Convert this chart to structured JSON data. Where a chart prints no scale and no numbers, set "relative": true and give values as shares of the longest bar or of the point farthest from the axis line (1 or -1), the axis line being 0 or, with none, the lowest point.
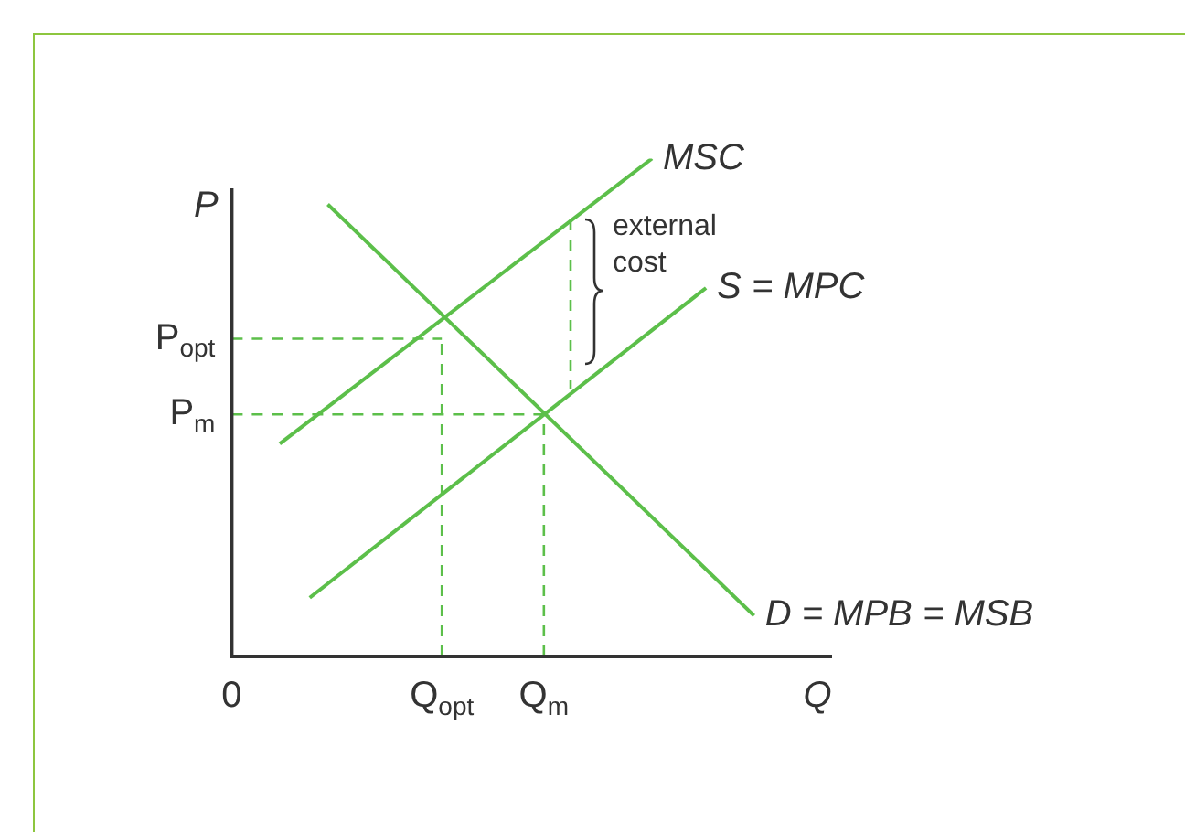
{
  "chart_data": {
    "type": "line",
    "relative": true,
    "xlabel": "Q",
    "ylabel": "P",
    "legend": false,
    "marker": "none",
    "line_style": "solid",
    "categories": [
      "0",
      null,
      null,
      null,
      null,
      null,
      null,
      null,
      null,
      null,
      null,
      null,
      null,
      null,
      null,
      null,
      null,
      null,
      null,
      null,
      null,
      null,
      null,
      null,
      null,
      null,
      null,
      null,
      null,
      null,
      null,
      null,
      null,
      null,
      null,
      "Q$_{opt}$",
      null,
      null,
      null,
      null,
      null,
      null,
      null,
      null,
      null,
      null,
      null,
      null,
      null,
      null,
      null,
      null,
      "Q$_{m}$",
      null,
      null,
      null,
      null,
      null,
      null,
      null,
      null,
      null,
      null,
      null,
      null,
      null,
      null,
      null,
      null,
      null,
      null,
      null,
      null,
      null,
      null,
      null,
      null,
      null,
      null,
      null,
      null,
      null,
      null,
      null,
      null,
      null,
      null,
      null,
      null,
      null,
      null,
      null,
      null,
      null,
      null,
      null,
      null,
      null,
      null,
      null,
      null
    ],
    "series": [
      {
        "name": "MSC",
        "color": "#5cbf4a",
        "values": [
          null,
          null,
          null,
          null,
          null,
          null,
          null,
          null,
          0.427,
          null,
          null,
          null,
          null,
          null,
          null,
          null,
          null,
          null,
          null,
          null,
          null,
          null,
          null,
          null,
          null,
          null,
          null,
          null,
          null,
          null,
          null,
          null,
          null,
          null,
          null,
          null,
          null,
          null,
          null,
          null,
          null,
          null,
          null,
          null,
          null,
          null,
          null,
          null,
          null,
          null,
          null,
          null,
          null,
          null,
          null,
          null,
          null,
          null,
          null,
          null,
          null,
          null,
          null,
          null,
          null,
          null,
          null,
          null,
          null,
          null,
          1,
          null,
          null,
          null,
          null,
          null,
          null,
          null,
          null,
          null,
          null,
          null,
          null,
          null,
          null,
          null,
          null,
          null,
          null,
          null,
          null,
          null,
          null,
          null,
          null,
          null,
          null,
          null,
          null,
          null,
          null
        ]
      },
      {
        "name": "S = MPC",
        "color": "#5cbf4a",
        "values": [
          null,
          null,
          null,
          null,
          null,
          null,
          null,
          null,
          null,
          null,
          null,
          null,
          null,
          0.118,
          null,
          null,
          null,
          null,
          null,
          null,
          null,
          null,
          null,
          null,
          null,
          null,
          null,
          null,
          null,
          null,
          null,
          null,
          null,
          null,
          null,
          null,
          null,
          null,
          null,
          null,
          null,
          null,
          null,
          null,
          null,
          null,
          null,
          null,
          null,
          null,
          null,
          null,
          null,
          null,
          null,
          null,
          null,
          null,
          null,
          null,
          null,
          null,
          null,
          null,
          null,
          null,
          null,
          null,
          null,
          null,
          null,
          null,
          null,
          null,
          null,
          null,
          null,
          null,
          null,
          0.74,
          null,
          null,
          null,
          null,
          null,
          null,
          null,
          null,
          null,
          null,
          null,
          null,
          null,
          null,
          null,
          null,
          null,
          null,
          null,
          null,
          null
        ]
      },
      {
        "name": "D = MPB = MSB",
        "color": "#5cbf4a",
        "values": [
          null,
          null,
          null,
          null,
          null,
          null,
          null,
          null,
          null,
          null,
          null,
          null,
          null,
          null,
          null,
          null,
          0.908,
          null,
          null,
          null,
          null,
          null,
          null,
          null,
          null,
          null,
          null,
          null,
          null,
          null,
          null,
          null,
          null,
          null,
          null,
          null,
          null,
          null,
          null,
          null,
          null,
          null,
          null,
          null,
          null,
          null,
          null,
          null,
          null,
          null,
          null,
          null,
          null,
          null,
          null,
          null,
          null,
          null,
          null,
          null,
          null,
          null,
          null,
          null,
          null,
          null,
          null,
          null,
          null,
          null,
          null,
          null,
          null,
          null,
          null,
          null,
          null,
          null,
          null,
          null,
          null,
          null,
          null,
          null,
          null,
          null,
          null,
          0.082,
          null,
          null,
          null,
          null,
          null,
          null,
          null,
          null,
          null,
          null,
          null,
          null,
          null
        ]
      },
      {
        "color": "#5cbf4a",
        "line_style": "dashed",
        "values": [
          0.638,
          null,
          null,
          null,
          null,
          null,
          null,
          null,
          null,
          null,
          null,
          null,
          null,
          null,
          null,
          null,
          null,
          null,
          null,
          null,
          null,
          null,
          null,
          null,
          null,
          null,
          null,
          null,
          null,
          null,
          null,
          null,
          null,
          null,
          null,
          0.638,
          null,
          null,
          null,
          null,
          null,
          null,
          null,
          null,
          null,
          null,
          null,
          null,
          null,
          null,
          null,
          null,
          null,
          null,
          null,
          null,
          null,
          null,
          null,
          null,
          null,
          null,
          null,
          null,
          null,
          null,
          null,
          null,
          null,
          null,
          null,
          null,
          null,
          null,
          null,
          null,
          null,
          null,
          null,
          null,
          null,
          null,
          null,
          null,
          null,
          null,
          null,
          null,
          null,
          null,
          null,
          null,
          null,
          null,
          null,
          null,
          null,
          null,
          null,
          null,
          null
        ]
      },
      {
        "color": "#5cbf4a",
        "line_style": "dashed",
        "values": [
          0.486,
          null,
          null,
          null,
          null,
          null,
          null,
          null,
          null,
          null,
          null,
          null,
          null,
          null,
          null,
          null,
          null,
          null,
          null,
          null,
          null,
          null,
          null,
          null,
          null,
          null,
          null,
          null,
          null,
          null,
          null,
          null,
          null,
          null,
          null,
          null,
          null,
          null,
          null,
          null,
          null,
          null,
          null,
          null,
          null,
          null,
          null,
          null,
          null,
          null,
          null,
          null,
          0.486,
          null,
          null,
          null,
          null,
          null,
          null,
          null,
          null,
          null,
          null,
          null,
          null,
          null,
          null,
          null,
          null,
          null,
          null,
          null,
          null,
          null,
          null,
          null,
          null,
          null,
          null,
          null,
          null,
          null,
          null,
          null,
          null,
          null,
          null,
          null,
          null,
          null,
          null,
          null,
          null,
          null,
          null,
          null,
          null,
          null,
          null,
          null,
          null
        ]
      }
    ],
    "ref_lines": [
      {
        "axis": "x",
        "value": "Q$_{opt}$",
        "color": "#5cbf4a",
        "line_style": "dashed"
      },
      {
        "axis": "x",
        "value": "Q$_{m}$",
        "color": "#5cbf4a",
        "line_style": "dashed"
      }
    ],
    "annotations": [
      {
        "text": "P$_{opt}$",
        "x": "0",
        "y": 0.638
      },
      {
        "text": "P$_{m}$",
        "x": "0",
        "y": 0.486
      },
      "external cost"
    ]
  }
}
